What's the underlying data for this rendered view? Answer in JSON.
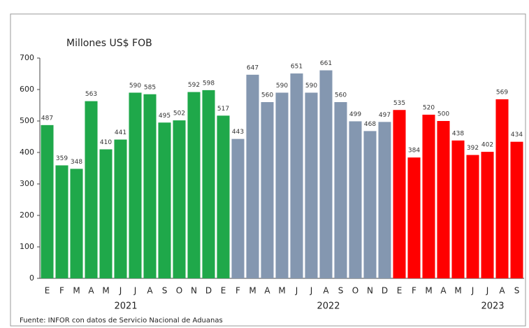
{
  "chart_data": {
    "type": "bar",
    "title": "Millones US$ FOB",
    "source": "Fuente: INFOR con datos de Servicio Nacional de Aduanas",
    "categories": [
      "E",
      "F",
      "M",
      "A",
      "M",
      "J",
      "J",
      "A",
      "S",
      "O",
      "N",
      "D",
      "E",
      "F",
      "M",
      "A",
      "M",
      "J",
      "J",
      "A",
      "S",
      "O",
      "N",
      "D",
      "E",
      "F",
      "M",
      "A",
      "M",
      "J",
      "J",
      "A",
      "S"
    ],
    "years": [
      "2021",
      "2022",
      "2023"
    ],
    "values": [
      487,
      359,
      348,
      563,
      410,
      441,
      590,
      585,
      495,
      502,
      592,
      598,
      517,
      443,
      647,
      560,
      590,
      651,
      590,
      661,
      560,
      499,
      468,
      497,
      535,
      384,
      520,
      500,
      438,
      392,
      402,
      569,
      434
    ],
    "bar_colors": [
      "#1fa84a",
      "#1fa84a",
      "#1fa84a",
      "#1fa84a",
      "#1fa84a",
      "#1fa84a",
      "#1fa84a",
      "#1fa84a",
      "#1fa84a",
      "#1fa84a",
      "#1fa84a",
      "#1fa84a",
      "#1fa84a",
      "#8497b0",
      "#8497b0",
      "#8497b0",
      "#8497b0",
      "#8497b0",
      "#8497b0",
      "#8497b0",
      "#8497b0",
      "#8497b0",
      "#8497b0",
      "#8497b0",
      "#ff0000",
      "#ff0000",
      "#ff0000",
      "#ff0000",
      "#ff0000",
      "#ff0000",
      "#ff0000",
      "#ff0000",
      "#ff0000"
    ],
    "ylim": [
      0,
      700
    ],
    "yticks": [
      0,
      100,
      200,
      300,
      400,
      500,
      600,
      700
    ],
    "grid": false
  }
}
